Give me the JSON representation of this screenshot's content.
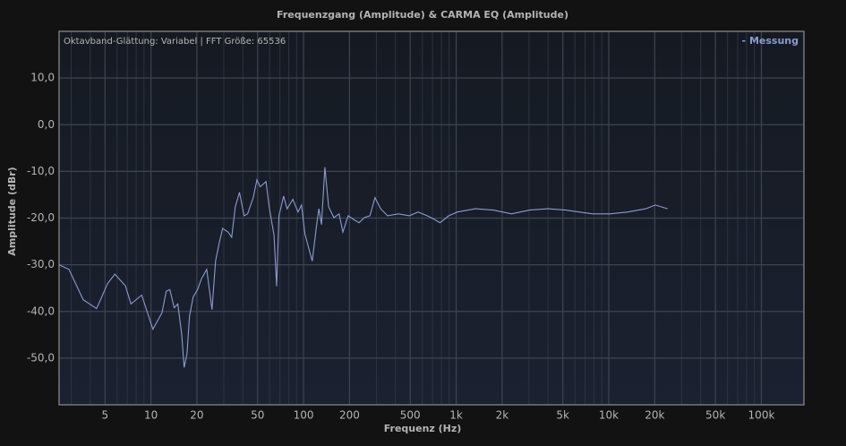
{
  "chart_data": {
    "type": "line",
    "title": "Frequenzgang (Amplitude) & CARMA EQ (Amplitude)",
    "annotation": "Oktavband-Glättung: Variabel | FFT Größe: 65536",
    "x_label": "Frequenz (Hz)",
    "y_label": "Amplitude (dBr)",
    "xscale": "log",
    "grid": true,
    "legend": "top-right",
    "xlim": [
      2.5,
      190000
    ],
    "ylim": [
      -60,
      20
    ],
    "xticks": [
      5,
      10,
      20,
      50,
      100,
      200,
      500,
      {
        "value": 1000,
        "label": "1k"
      },
      {
        "value": 2000,
        "label": "2k"
      },
      {
        "value": 5000,
        "label": "5k"
      },
      {
        "value": 10000,
        "label": "10k"
      },
      {
        "value": 20000,
        "label": "20k"
      },
      {
        "value": 50000,
        "label": "50k"
      },
      {
        "value": 100000,
        "label": "100k"
      }
    ],
    "xminor_ticks": [
      3,
      4,
      6,
      7,
      8,
      9,
      30,
      40,
      60,
      70,
      80,
      90,
      300,
      400,
      600,
      700,
      800,
      900,
      3000,
      4000,
      6000,
      7000,
      8000,
      9000,
      30000,
      40000,
      60000,
      70000,
      80000,
      90000
    ],
    "yticks": [
      {
        "value": -50,
        "label": "-50,0"
      },
      {
        "value": -40,
        "label": "-40,0"
      },
      {
        "value": -30,
        "label": "-30,0"
      },
      {
        "value": -20,
        "label": "-20,0"
      },
      {
        "value": -10,
        "label": "-10,0"
      },
      {
        "value": 0,
        "label": "0,0"
      },
      {
        "value": 10,
        "label": "10,0"
      }
    ],
    "x": [
      2.5,
      2.9,
      3.6,
      4.4,
      5.2,
      5.8,
      6.8,
      7.4,
      8.7,
      10.3,
      11.8,
      12.6,
      13.3,
      14.2,
      15,
      15.9,
      16.5,
      17.2,
      17.9,
      18.9,
      20.2,
      21.4,
      23.2,
      25.1,
      26.5,
      28,
      29.5,
      32,
      33.8,
      35.7,
      38,
      40.8,
      43,
      46.8,
      49.5,
      52,
      56.7,
      59.8,
      64,
      66.6,
      69,
      74,
      78,
      85,
      92,
      97,
      102,
      108,
      114,
      121,
      126,
      131,
      138,
      146,
      158,
      171,
      181,
      196,
      213,
      231,
      250,
      272,
      294,
      320,
      355,
      418,
      494,
      563,
      646,
      723,
      784,
      894,
      1019,
      1340,
      1752,
      2304,
      3026,
      3987,
      5230,
      7855,
      10180,
      13370,
      17500,
      20150,
      24330
    ],
    "series": [
      {
        "name": "Messung",
        "color": "#8c9bcf",
        "values": [
          -30,
          -31,
          -37.5,
          -39.4,
          -34,
          -32,
          -34.5,
          -38.4,
          -36.5,
          -43.8,
          -40.3,
          -35.7,
          -35.3,
          -39.2,
          -38.4,
          -45,
          -52,
          -49.2,
          -41,
          -36.9,
          -35.3,
          -33,
          -31,
          -39.6,
          -29.2,
          -25.3,
          -22.2,
          -23,
          -24.1,
          -17.6,
          -14.5,
          -19.5,
          -19.1,
          -15.6,
          -11.8,
          -13.3,
          -12.2,
          -18,
          -23.7,
          -34.6,
          -19.5,
          -15.3,
          -18,
          -16,
          -18.7,
          -17.2,
          -23.4,
          -26.4,
          -29.2,
          -22.2,
          -18,
          -21.4,
          -9.1,
          -17.6,
          -19.9,
          -19.1,
          -23,
          -19.5,
          -20.3,
          -21,
          -19.9,
          -19.5,
          -15.6,
          -18,
          -19.5,
          -19.1,
          -19.5,
          -18.7,
          -19.5,
          -20.3,
          -21,
          -19.5,
          -18.7,
          -18,
          -18.3,
          -19.1,
          -18.3,
          -18,
          -18.3,
          -19.1,
          -19.1,
          -18.7,
          -18,
          -17.2,
          -18
        ]
      }
    ]
  }
}
